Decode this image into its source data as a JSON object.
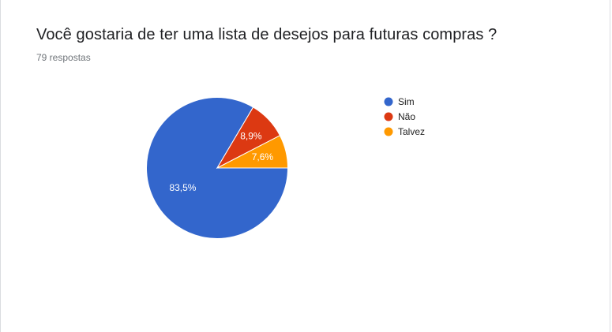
{
  "question": {
    "title": "Você gostaria de ter uma lista de desejos para futuras compras ?",
    "responses": "79 respostas"
  },
  "chart_data": {
    "type": "pie",
    "categories": [
      "Sim",
      "Não",
      "Talvez"
    ],
    "values": [
      83.5,
      8.9,
      7.6
    ],
    "labels": [
      "83,5%",
      "8,9%",
      "7,6%"
    ],
    "colors": [
      "#3366cc",
      "#dc3912",
      "#ff9900"
    ],
    "legend_position": "right"
  }
}
